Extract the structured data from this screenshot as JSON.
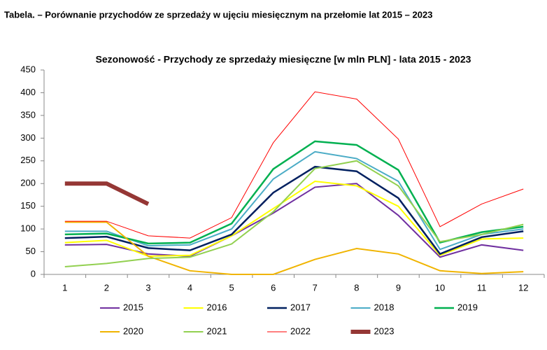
{
  "heading": "Tabela. – Porównanie przychodów ze sprzedaży w ujęciu miesięcznym na przełomie lat 2015 – 2023",
  "chart_data": {
    "type": "line",
    "title": "Sezonowość - Przychody ze sprzedaży miesięczne [w mln PLN] - lata 2015 - 2023",
    "categories": [
      "1",
      "2",
      "3",
      "4",
      "5",
      "6",
      "7",
      "8",
      "9",
      "10",
      "11",
      "12"
    ],
    "ylim": [
      0,
      450
    ],
    "yticks": [
      0,
      50,
      100,
      150,
      200,
      250,
      300,
      350,
      400,
      450
    ],
    "grid": false,
    "series": [
      {
        "name": "2015",
        "color": "#7030a0",
        "width": 2,
        "values": [
          65,
          66,
          45,
          40,
          85,
          135,
          192,
          200,
          130,
          38,
          65,
          53
        ]
      },
      {
        "name": "2016",
        "color": "#ffff00",
        "width": 2,
        "values": [
          70,
          75,
          40,
          42,
          85,
          145,
          205,
          195,
          150,
          42,
          78,
          80
        ]
      },
      {
        "name": "2017",
        "color": "#002060",
        "width": 2.5,
        "values": [
          80,
          83,
          58,
          53,
          88,
          180,
          237,
          227,
          168,
          45,
          82,
          95
        ]
      },
      {
        "name": "2018",
        "color": "#4bacc6",
        "width": 2,
        "values": [
          95,
          95,
          63,
          65,
          100,
          210,
          270,
          255,
          205,
          55,
          88,
          100
        ]
      },
      {
        "name": "2019",
        "color": "#00b050",
        "width": 2.5,
        "values": [
          88,
          90,
          68,
          70,
          112,
          232,
          293,
          285,
          230,
          70,
          93,
          105
        ]
      },
      {
        "name": "2020",
        "color": "#f0b400",
        "width": 2,
        "values": [
          115,
          115,
          40,
          8,
          0,
          0,
          33,
          57,
          45,
          8,
          2,
          6
        ]
      },
      {
        "name": "2021",
        "color": "#92d050",
        "width": 2,
        "values": [
          17,
          24,
          35,
          38,
          67,
          138,
          233,
          250,
          195,
          72,
          88,
          110
        ]
      },
      {
        "name": "2022",
        "color": "#ff0000",
        "width": 1,
        "values": [
          117,
          117,
          85,
          80,
          125,
          290,
          402,
          386,
          298,
          105,
          155,
          188
        ]
      },
      {
        "name": "2023",
        "color": "#953735",
        "width": 6,
        "values": [
          200,
          200,
          155,
          null,
          null,
          null,
          null,
          null,
          null,
          null,
          null,
          null
        ]
      }
    ]
  }
}
